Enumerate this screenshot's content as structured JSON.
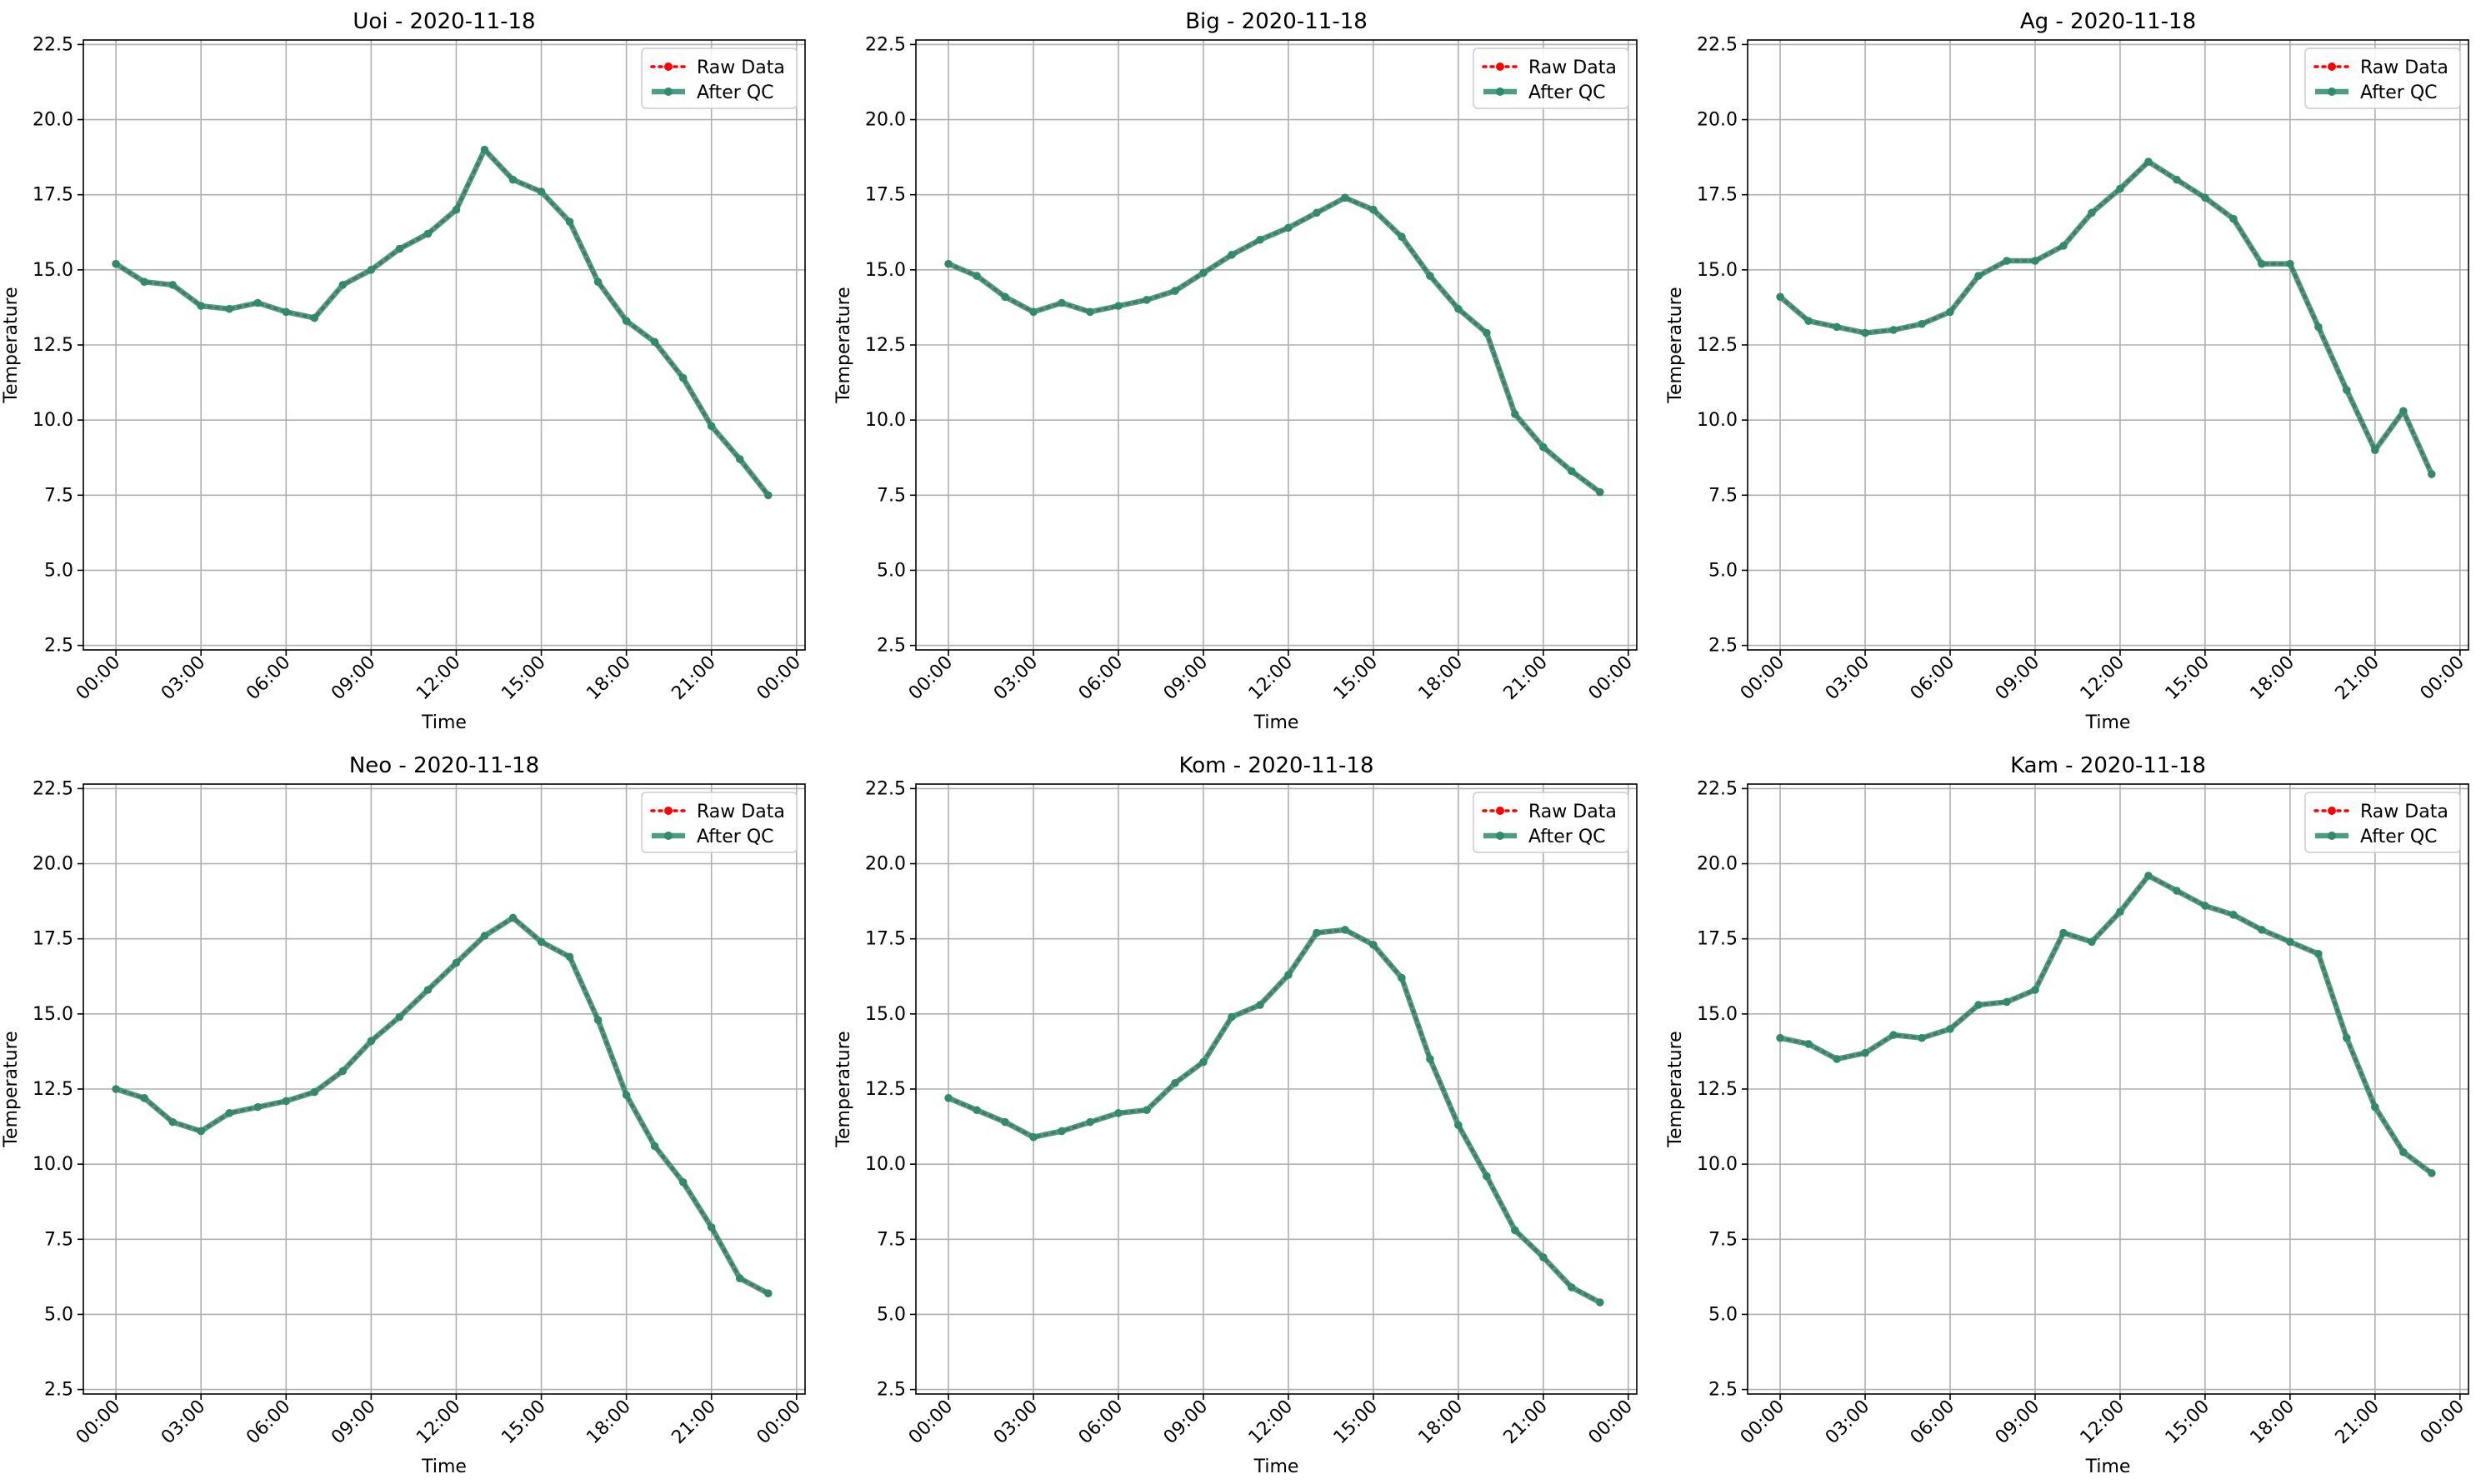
{
  "figure": {
    "colors": {
      "raw": "#ff0000",
      "qc": "#2e8b6f",
      "grid": "#b0b0b0",
      "axis": "#000000"
    }
  },
  "chart_data": [
    {
      "type": "line",
      "title": "Uoi - 2020-11-18",
      "xlabel": "Time",
      "ylabel": "Temperature",
      "ylim": [
        2.5,
        22.5
      ],
      "yticks": [
        "2.5",
        "5.0",
        "7.5",
        "10.0",
        "12.5",
        "15.0",
        "17.5",
        "20.0",
        "22.5"
      ],
      "xticks": [
        "00:00",
        "03:00",
        "06:00",
        "09:00",
        "12:00",
        "15:00",
        "18:00",
        "21:00",
        "00:00"
      ],
      "x_hours": [
        0,
        1,
        2,
        3,
        4,
        5,
        6,
        7,
        8,
        9,
        10,
        11,
        12,
        13,
        14,
        15,
        16,
        17,
        18,
        19,
        20,
        21,
        22,
        23
      ],
      "series": [
        {
          "name": "Raw Data",
          "values": [
            15.2,
            14.6,
            14.5,
            13.8,
            13.7,
            13.9,
            13.6,
            13.4,
            14.5,
            15.0,
            15.7,
            16.2,
            17.0,
            19.0,
            18.0,
            17.6,
            16.6,
            14.6,
            13.3,
            12.6,
            11.4,
            9.8,
            8.7,
            7.5
          ]
        },
        {
          "name": "After QC",
          "values": [
            15.2,
            14.6,
            14.5,
            13.8,
            13.7,
            13.9,
            13.6,
            13.4,
            14.5,
            15.0,
            15.7,
            16.2,
            17.0,
            19.0,
            18.0,
            17.6,
            16.6,
            14.6,
            13.3,
            12.6,
            11.4,
            9.8,
            8.7,
            7.5
          ]
        }
      ],
      "legend": "top-right",
      "grid": true
    },
    {
      "type": "line",
      "title": "Big - 2020-11-18",
      "xlabel": "Time",
      "ylabel": "Temperature",
      "ylim": [
        2.5,
        22.5
      ],
      "yticks": [
        "2.5",
        "5.0",
        "7.5",
        "10.0",
        "12.5",
        "15.0",
        "17.5",
        "20.0",
        "22.5"
      ],
      "xticks": [
        "00:00",
        "03:00",
        "06:00",
        "09:00",
        "12:00",
        "15:00",
        "18:00",
        "21:00",
        "00:00"
      ],
      "x_hours": [
        0,
        1,
        2,
        3,
        4,
        5,
        6,
        7,
        8,
        9,
        10,
        11,
        12,
        13,
        14,
        15,
        16,
        17,
        18,
        19,
        20,
        21,
        22,
        23
      ],
      "series": [
        {
          "name": "Raw Data",
          "values": [
            15.2,
            14.8,
            14.1,
            13.6,
            13.9,
            13.6,
            13.8,
            14.0,
            14.3,
            14.9,
            15.5,
            16.0,
            16.4,
            16.9,
            17.4,
            17.0,
            16.1,
            14.8,
            13.7,
            12.9,
            10.2,
            9.1,
            8.3,
            7.6
          ]
        },
        {
          "name": "After QC",
          "values": [
            15.2,
            14.8,
            14.1,
            13.6,
            13.9,
            13.6,
            13.8,
            14.0,
            14.3,
            14.9,
            15.5,
            16.0,
            16.4,
            16.9,
            17.4,
            17.0,
            16.1,
            14.8,
            13.7,
            12.9,
            10.2,
            9.1,
            8.3,
            7.6
          ]
        }
      ],
      "legend": "top-right",
      "grid": true
    },
    {
      "type": "line",
      "title": "Ag - 2020-11-18",
      "xlabel": "Time",
      "ylabel": "Temperature",
      "ylim": [
        2.5,
        22.5
      ],
      "yticks": [
        "2.5",
        "5.0",
        "7.5",
        "10.0",
        "12.5",
        "15.0",
        "17.5",
        "20.0",
        "22.5"
      ],
      "xticks": [
        "00:00",
        "03:00",
        "06:00",
        "09:00",
        "12:00",
        "15:00",
        "18:00",
        "21:00",
        "00:00"
      ],
      "x_hours": [
        0,
        1,
        2,
        3,
        4,
        5,
        6,
        7,
        8,
        9,
        10,
        11,
        12,
        13,
        14,
        15,
        16,
        17,
        18,
        19,
        20,
        21,
        22,
        23
      ],
      "series": [
        {
          "name": "Raw Data",
          "values": [
            14.1,
            13.3,
            13.1,
            12.9,
            13.0,
            13.2,
            13.6,
            14.8,
            15.3,
            15.3,
            15.8,
            16.9,
            17.7,
            18.6,
            18.0,
            17.4,
            16.7,
            15.2,
            15.2,
            13.1,
            11.0,
            9.0,
            10.3,
            8.2
          ]
        },
        {
          "name": "After QC",
          "values": [
            14.1,
            13.3,
            13.1,
            12.9,
            13.0,
            13.2,
            13.6,
            14.8,
            15.3,
            15.3,
            15.8,
            16.9,
            17.7,
            18.6,
            18.0,
            17.4,
            16.7,
            15.2,
            15.2,
            13.1,
            11.0,
            9.0,
            10.3,
            8.2
          ]
        }
      ],
      "legend": "top-right",
      "grid": true
    },
    {
      "type": "line",
      "title": "Neo - 2020-11-18",
      "xlabel": "Time",
      "ylabel": "Temperature",
      "ylim": [
        2.5,
        22.5
      ],
      "yticks": [
        "2.5",
        "5.0",
        "7.5",
        "10.0",
        "12.5",
        "15.0",
        "17.5",
        "20.0",
        "22.5"
      ],
      "xticks": [
        "00:00",
        "03:00",
        "06:00",
        "09:00",
        "12:00",
        "15:00",
        "18:00",
        "21:00",
        "00:00"
      ],
      "x_hours": [
        0,
        1,
        2,
        3,
        4,
        5,
        6,
        7,
        8,
        9,
        10,
        11,
        12,
        13,
        14,
        15,
        16,
        17,
        18,
        19,
        20,
        21,
        22,
        23
      ],
      "series": [
        {
          "name": "Raw Data",
          "values": [
            12.5,
            12.2,
            11.4,
            11.1,
            11.7,
            11.9,
            12.1,
            12.4,
            13.1,
            14.1,
            14.9,
            15.8,
            16.7,
            17.6,
            18.2,
            17.4,
            16.9,
            14.8,
            12.3,
            10.6,
            9.4,
            7.9,
            6.2,
            5.7
          ]
        },
        {
          "name": "After QC",
          "values": [
            12.5,
            12.2,
            11.4,
            11.1,
            11.7,
            11.9,
            12.1,
            12.4,
            13.1,
            14.1,
            14.9,
            15.8,
            16.7,
            17.6,
            18.2,
            17.4,
            16.9,
            14.8,
            12.3,
            10.6,
            9.4,
            7.9,
            6.2,
            5.7
          ]
        }
      ],
      "legend": "top-right",
      "grid": true
    },
    {
      "type": "line",
      "title": "Kom - 2020-11-18",
      "xlabel": "Time",
      "ylabel": "Temperature",
      "ylim": [
        2.5,
        22.5
      ],
      "yticks": [
        "2.5",
        "5.0",
        "7.5",
        "10.0",
        "12.5",
        "15.0",
        "17.5",
        "20.0",
        "22.5"
      ],
      "xticks": [
        "00:00",
        "03:00",
        "06:00",
        "09:00",
        "12:00",
        "15:00",
        "18:00",
        "21:00",
        "00:00"
      ],
      "x_hours": [
        0,
        1,
        2,
        3,
        4,
        5,
        6,
        7,
        8,
        9,
        10,
        11,
        12,
        13,
        14,
        15,
        16,
        17,
        18,
        19,
        20,
        21,
        22,
        23
      ],
      "series": [
        {
          "name": "Raw Data",
          "values": [
            12.2,
            11.8,
            11.4,
            10.9,
            11.1,
            11.4,
            11.7,
            11.8,
            12.7,
            13.4,
            14.9,
            15.3,
            16.3,
            17.7,
            17.8,
            17.3,
            16.2,
            13.5,
            11.3,
            9.6,
            7.8,
            6.9,
            5.9,
            5.4
          ]
        },
        {
          "name": "After QC",
          "values": [
            12.2,
            11.8,
            11.4,
            10.9,
            11.1,
            11.4,
            11.7,
            11.8,
            12.7,
            13.4,
            14.9,
            15.3,
            16.3,
            17.7,
            17.8,
            17.3,
            16.2,
            13.5,
            11.3,
            9.6,
            7.8,
            6.9,
            5.9,
            5.4
          ]
        }
      ],
      "legend": "top-right",
      "grid": true
    },
    {
      "type": "line",
      "title": "Kam - 2020-11-18",
      "xlabel": "Time",
      "ylabel": "Temperature",
      "ylim": [
        2.5,
        22.5
      ],
      "yticks": [
        "2.5",
        "5.0",
        "7.5",
        "10.0",
        "12.5",
        "15.0",
        "17.5",
        "20.0",
        "22.5"
      ],
      "xticks": [
        "00:00",
        "03:00",
        "06:00",
        "09:00",
        "12:00",
        "15:00",
        "18:00",
        "21:00",
        "00:00"
      ],
      "x_hours": [
        0,
        1,
        2,
        3,
        4,
        5,
        6,
        7,
        8,
        9,
        10,
        11,
        12,
        13,
        14,
        15,
        16,
        17,
        18,
        19,
        20,
        21,
        22,
        23
      ],
      "series": [
        {
          "name": "Raw Data",
          "values": [
            14.2,
            14.0,
            13.5,
            13.7,
            14.3,
            14.2,
            14.5,
            15.3,
            15.4,
            15.8,
            17.7,
            17.4,
            18.4,
            19.6,
            19.1,
            18.6,
            18.3,
            17.8,
            17.4,
            17.0,
            14.2,
            11.9,
            10.4,
            9.7
          ]
        },
        {
          "name": "After QC",
          "values": [
            14.2,
            14.0,
            13.5,
            13.7,
            14.3,
            14.2,
            14.5,
            15.3,
            15.4,
            15.8,
            17.7,
            17.4,
            18.4,
            19.6,
            19.1,
            18.6,
            18.3,
            17.8,
            17.4,
            17.0,
            14.2,
            11.9,
            10.4,
            9.7
          ]
        }
      ],
      "legend": "top-right",
      "grid": true
    }
  ]
}
